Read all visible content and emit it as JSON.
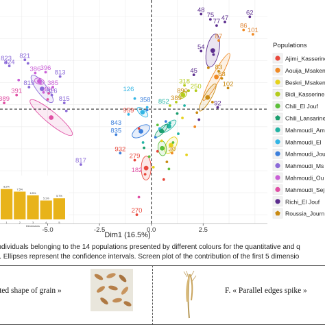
{
  "figure": {
    "x_axis_label": "Dim1 (16.5%)",
    "x_ticks": [
      {
        "value": -5.0,
        "label": "-5.0"
      },
      {
        "value": -2.5,
        "label": "-2.5"
      },
      {
        "value": 0.0,
        "label": "0.0"
      },
      {
        "value": 2.5,
        "label": "2.5"
      }
    ],
    "legend": {
      "title": "Populations",
      "items": [
        {
          "label": "Ajimi_Kasserine",
          "color": "#e8473b",
          "shape": "dot"
        },
        {
          "label": "Aouija_Msaken",
          "color": "#f08a24",
          "shape": "dot"
        },
        {
          "label": "Beskri_Msaken",
          "color": "#e6d21a",
          "shape": "dot"
        },
        {
          "label": "Bidi_Kasserine",
          "color": "#b5cc1c",
          "shape": "dot"
        },
        {
          "label": "Chili_El Jouf",
          "color": "#5cbf3a",
          "shape": "dot"
        },
        {
          "label": "Chili_Lansarine",
          "color": "#1a9e6e",
          "shape": "pentagon"
        },
        {
          "label": "Mahmoudi_Ami",
          "color": "#21b3a3",
          "shape": "dot"
        },
        {
          "label": "Mahmoudi_El",
          "color": "#33b5e5",
          "shape": "dot"
        },
        {
          "label": "Mahmoudi_Jou",
          "color": "#3b7fdc",
          "shape": "dot"
        },
        {
          "label": "Mahmoudi_Ms",
          "color": "#8b6ad8",
          "shape": "dot"
        },
        {
          "label": "Mahmoudi_Ou",
          "color": "#c95fd6",
          "shape": "dot"
        },
        {
          "label": "Mahmoudi_Sej",
          "color": "#e04fa4",
          "shape": "dot"
        },
        {
          "label": "Richi_El Jouf",
          "color": "#5b2d8e",
          "shape": "dot"
        },
        {
          "label": "Roussia_Journ",
          "color": "#c98a12",
          "shape": "pentagon"
        }
      ]
    },
    "point_labels": [
      {
        "text": "48",
        "color": "#5b2d8e"
      },
      {
        "text": "75",
        "color": "#5b2d8e"
      },
      {
        "text": "77",
        "color": "#5b2d8e"
      },
      {
        "text": "47",
        "color": "#5b2d8e"
      },
      {
        "text": "62",
        "color": "#5b2d8e"
      },
      {
        "text": "86",
        "color": "#e08a3c"
      },
      {
        "text": "101",
        "color": "#e08a3c"
      },
      {
        "text": "87",
        "color": "#e08a3c"
      },
      {
        "text": "54",
        "color": "#5b2d8e"
      },
      {
        "text": "83",
        "color": "#c98a12"
      },
      {
        "text": "63",
        "color": "#c98a12"
      },
      {
        "text": "102",
        "color": "#c98a12"
      },
      {
        "text": "45",
        "color": "#5b2d8e"
      },
      {
        "text": "250",
        "color": "#b5cc1c"
      },
      {
        "text": "318",
        "color": "#b5cc1c"
      },
      {
        "text": "823",
        "color": "#8b6ad8"
      },
      {
        "text": "824",
        "color": "#8b6ad8"
      },
      {
        "text": "821",
        "color": "#8b6ad8"
      },
      {
        "text": "386",
        "color": "#c95fd6"
      },
      {
        "text": "396",
        "color": "#c95fd6"
      },
      {
        "text": "813",
        "color": "#8b6ad8"
      },
      {
        "text": "819",
        "color": "#8b6ad8"
      },
      {
        "text": "400",
        "color": "#c95fd6"
      },
      {
        "text": "389",
        "color": "#e04fa4"
      },
      {
        "text": "816",
        "color": "#8b6ad8"
      },
      {
        "text": "385",
        "color": "#c95fd6"
      },
      {
        "text": "391",
        "color": "#e04fa4"
      },
      {
        "text": "815",
        "color": "#8b6ad8"
      },
      {
        "text": "126",
        "color": "#33b5e5"
      },
      {
        "text": "358",
        "color": "#3b7fdc"
      },
      {
        "text": "389",
        "color": "#c98a12"
      },
      {
        "text": "890",
        "color": "#c98a12"
      },
      {
        "text": "852",
        "color": "#21b3a3"
      },
      {
        "text": "92",
        "color": "#5b2d8e"
      },
      {
        "text": "959",
        "color": "#e8473b"
      },
      {
        "text": "843",
        "color": "#3b7fdc"
      },
      {
        "text": "835",
        "color": "#3b7fdc"
      },
      {
        "text": "817",
        "color": "#8b6ad8"
      },
      {
        "text": "932",
        "color": "#e8473b"
      },
      {
        "text": "279",
        "color": "#e8473b"
      },
      {
        "text": "182",
        "color": "#e04fa4"
      },
      {
        "text": "30",
        "color": "#c98a12"
      },
      {
        "text": "270",
        "color": "#e8473b"
      }
    ],
    "inset": {
      "xlabel": "Dimensions",
      "categories": [
        "1",
        "2",
        "3",
        "4",
        "5"
      ],
      "values": [
        8.2,
        7.5,
        6.5,
        5.1,
        5.7
      ],
      "value_labels": [
        "8.2%",
        "7.5%",
        "6.5%",
        "5.1%",
        "5.7%"
      ]
    }
  },
  "caption_lines": [
    "individuals belonging to the 14 populations presented by different colours for the quantitative and q",
    "s. Ellipses represent the confidence intervals. Screen plot of the contribution of the first 5 dimensio"
  ],
  "panels": [
    {
      "label": "ated shape of grain »"
    },
    {
      "label": "F. « Parallel edges spike »"
    }
  ],
  "chart_data": [
    {
      "type": "scatter",
      "title": "",
      "xlabel": "Dim1 (16.5%)",
      "ylabel": "",
      "xlim": [
        -7.3,
        5.6
      ],
      "ylim": [
        -6.5,
        6.2
      ],
      "grid": true,
      "legend_position": "right",
      "reference_lines": {
        "x": 0,
        "y": 0,
        "style": "dashed"
      },
      "series": [
        {
          "name": "Richi_El Jouf",
          "color": "#5b2d8e",
          "points": [
            [
              2.4,
              5.4
            ],
            [
              2.85,
              5.1
            ],
            [
              3.15,
              4.75
            ],
            [
              3.55,
              4.95
            ],
            [
              4.75,
              5.25
            ],
            [
              2.4,
              3.3
            ],
            [
              3.0,
              3.1
            ],
            [
              2.05,
              1.95
            ],
            [
              3.2,
              0.1
            ],
            [
              2.3,
              -0.6
            ]
          ]
        },
        {
          "name": "Aouija_Msaken",
          "color": "#f08a24",
          "points": [
            [
              4.45,
              4.5
            ],
            [
              4.9,
              4.25
            ],
            [
              3.25,
              3.9
            ],
            [
              2.1,
              -1.0
            ],
            [
              1.0,
              -2.5
            ]
          ]
        },
        {
          "name": "Roussia_Journ",
          "color": "#c98a12",
          "points": [
            [
              3.25,
              2.15
            ],
            [
              3.4,
              1.75
            ],
            [
              3.7,
              1.2
            ],
            [
              2.75,
              2.35
            ],
            [
              2.95,
              0.4
            ],
            [
              2.2,
              -0.2
            ],
            [
              0.75,
              -3.0
            ]
          ]
        },
        {
          "name": "Bidi_Kasserine",
          "color": "#b5cc1c",
          "points": [
            [
              1.8,
              1.05
            ],
            [
              2.15,
              1.05
            ],
            [
              1.6,
              1.35
            ],
            [
              1.2,
              0.4
            ],
            [
              1.5,
              0.8
            ],
            [
              0.9,
              0.2
            ]
          ]
        },
        {
          "name": "Mahmoudi_Ms",
          "color": "#8b6ad8",
          "points": [
            [
              -7.0,
              2.65
            ],
            [
              -6.85,
              2.45
            ],
            [
              -6.1,
              2.8
            ],
            [
              -5.95,
              2.6
            ],
            [
              -4.4,
              1.85
            ],
            [
              -5.9,
              1.25
            ],
            [
              -4.8,
              0.8
            ],
            [
              -4.2,
              0.35
            ],
            [
              -4.1,
              -0.1
            ],
            [
              -3.4,
              -3.15
            ]
          ]
        },
        {
          "name": "Mahmoudi_Ou",
          "color": "#c95fd6",
          "points": [
            [
              -5.6,
              2.05
            ],
            [
              -5.1,
              2.1
            ],
            [
              -5.35,
              1.5
            ],
            [
              -4.75,
              1.25
            ],
            [
              -5.2,
              0.95
            ],
            [
              -6.4,
              1.65
            ]
          ]
        },
        {
          "name": "Mahmoudi_Sej",
          "color": "#e04fa4",
          "points": [
            [
              -4.95,
              0.9
            ],
            [
              -7.1,
              0.35
            ],
            [
              -6.5,
              0.8
            ],
            [
              -5.0,
              0.55
            ],
            [
              -0.6,
              -5.0
            ]
          ]
        },
        {
          "name": "Mahmoudi_El",
          "color": "#33b5e5",
          "points": [
            [
              -1.1,
              -0.3
            ],
            [
              -0.8,
              0.6
            ],
            [
              -0.2,
              0.1
            ],
            [
              0.4,
              -1.1
            ]
          ]
        },
        {
          "name": "Mahmoudi_Jou",
          "color": "#3b7fdc",
          "points": [
            [
              -0.2,
              -0.05
            ],
            [
              -1.7,
              -1.45
            ],
            [
              -1.5,
              -2.5
            ],
            [
              0.2,
              -1.6
            ],
            [
              0.7,
              -0.7
            ]
          ]
        },
        {
          "name": "Mahmoudi_Ami",
          "color": "#21b3a3",
          "points": [
            [
              1.6,
              0.2
            ],
            [
              0.9,
              -0.8
            ],
            [
              -0.4,
              -1.9
            ],
            [
              1.3,
              -1.4
            ]
          ]
        },
        {
          "name": "Ajimi_Kasserine",
          "color": "#e8473b",
          "points": [
            [
              -0.6,
              -1.1
            ],
            [
              -0.8,
              -2.9
            ],
            [
              -0.3,
              -3.7
            ],
            [
              -0.7,
              -6.0
            ],
            [
              0.3,
              -2.4
            ],
            [
              0.6,
              -4.0
            ]
          ]
        },
        {
          "name": "Beskri_Msaken",
          "color": "#e6d21a",
          "points": [
            [
              1.5,
              -0.5
            ],
            [
              0.5,
              -1.8
            ],
            [
              1.7,
              -2.6
            ],
            [
              0.1,
              -3.3
            ]
          ]
        },
        {
          "name": "Chili_El Jouf",
          "color": "#5cbf3a",
          "points": [
            [
              0.3,
              -0.9
            ],
            [
              1.05,
              -1.9
            ],
            [
              -0.1,
              -2.7
            ],
            [
              0.85,
              -3.4
            ]
          ]
        },
        {
          "name": "Chili_Lansarine",
          "color": "#1a9e6e",
          "points": [
            [
              0.55,
              -1.25
            ],
            [
              1.25,
              -0.25
            ],
            [
              -0.35,
              -2.2
            ]
          ]
        }
      ]
    },
    {
      "type": "bar",
      "title": "",
      "xlabel": "Dimensions",
      "ylabel": "",
      "categories": [
        "1",
        "2",
        "3",
        "4",
        "5"
      ],
      "values": [
        8.2,
        7.5,
        6.5,
        5.1,
        5.7
      ],
      "ylim": [
        0,
        10
      ]
    }
  ]
}
